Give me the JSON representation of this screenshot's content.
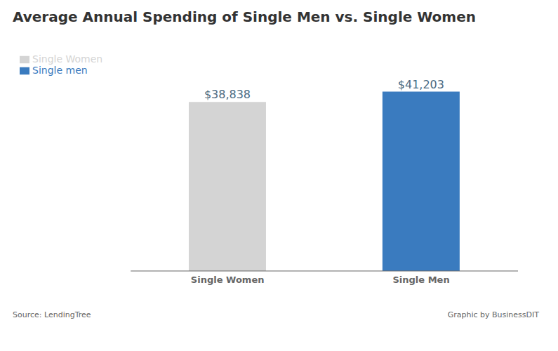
{
  "chart_data": {
    "type": "bar",
    "title": "Average Annual Spending of Single Men vs. Single Women",
    "categories": [
      "Single Women",
      "Single Men"
    ],
    "series": [
      {
        "name": "Single Women",
        "color": "#d4d4d4",
        "values": [
          38838,
          null
        ],
        "value_labels": [
          "$38,838",
          null
        ]
      },
      {
        "name": "Single men",
        "color": "#3a7bbf",
        "values": [
          null,
          41203
        ],
        "value_labels": [
          null,
          "$41,203"
        ]
      }
    ],
    "ylim": [
      0,
      50000
    ],
    "stacked": true,
    "data_labels": true,
    "tick_labels": "x",
    "grid": false,
    "legend": "upper left",
    "annotations": [
      "Source: LendingTree",
      "Graphic by BusinessDIT"
    ]
  }
}
